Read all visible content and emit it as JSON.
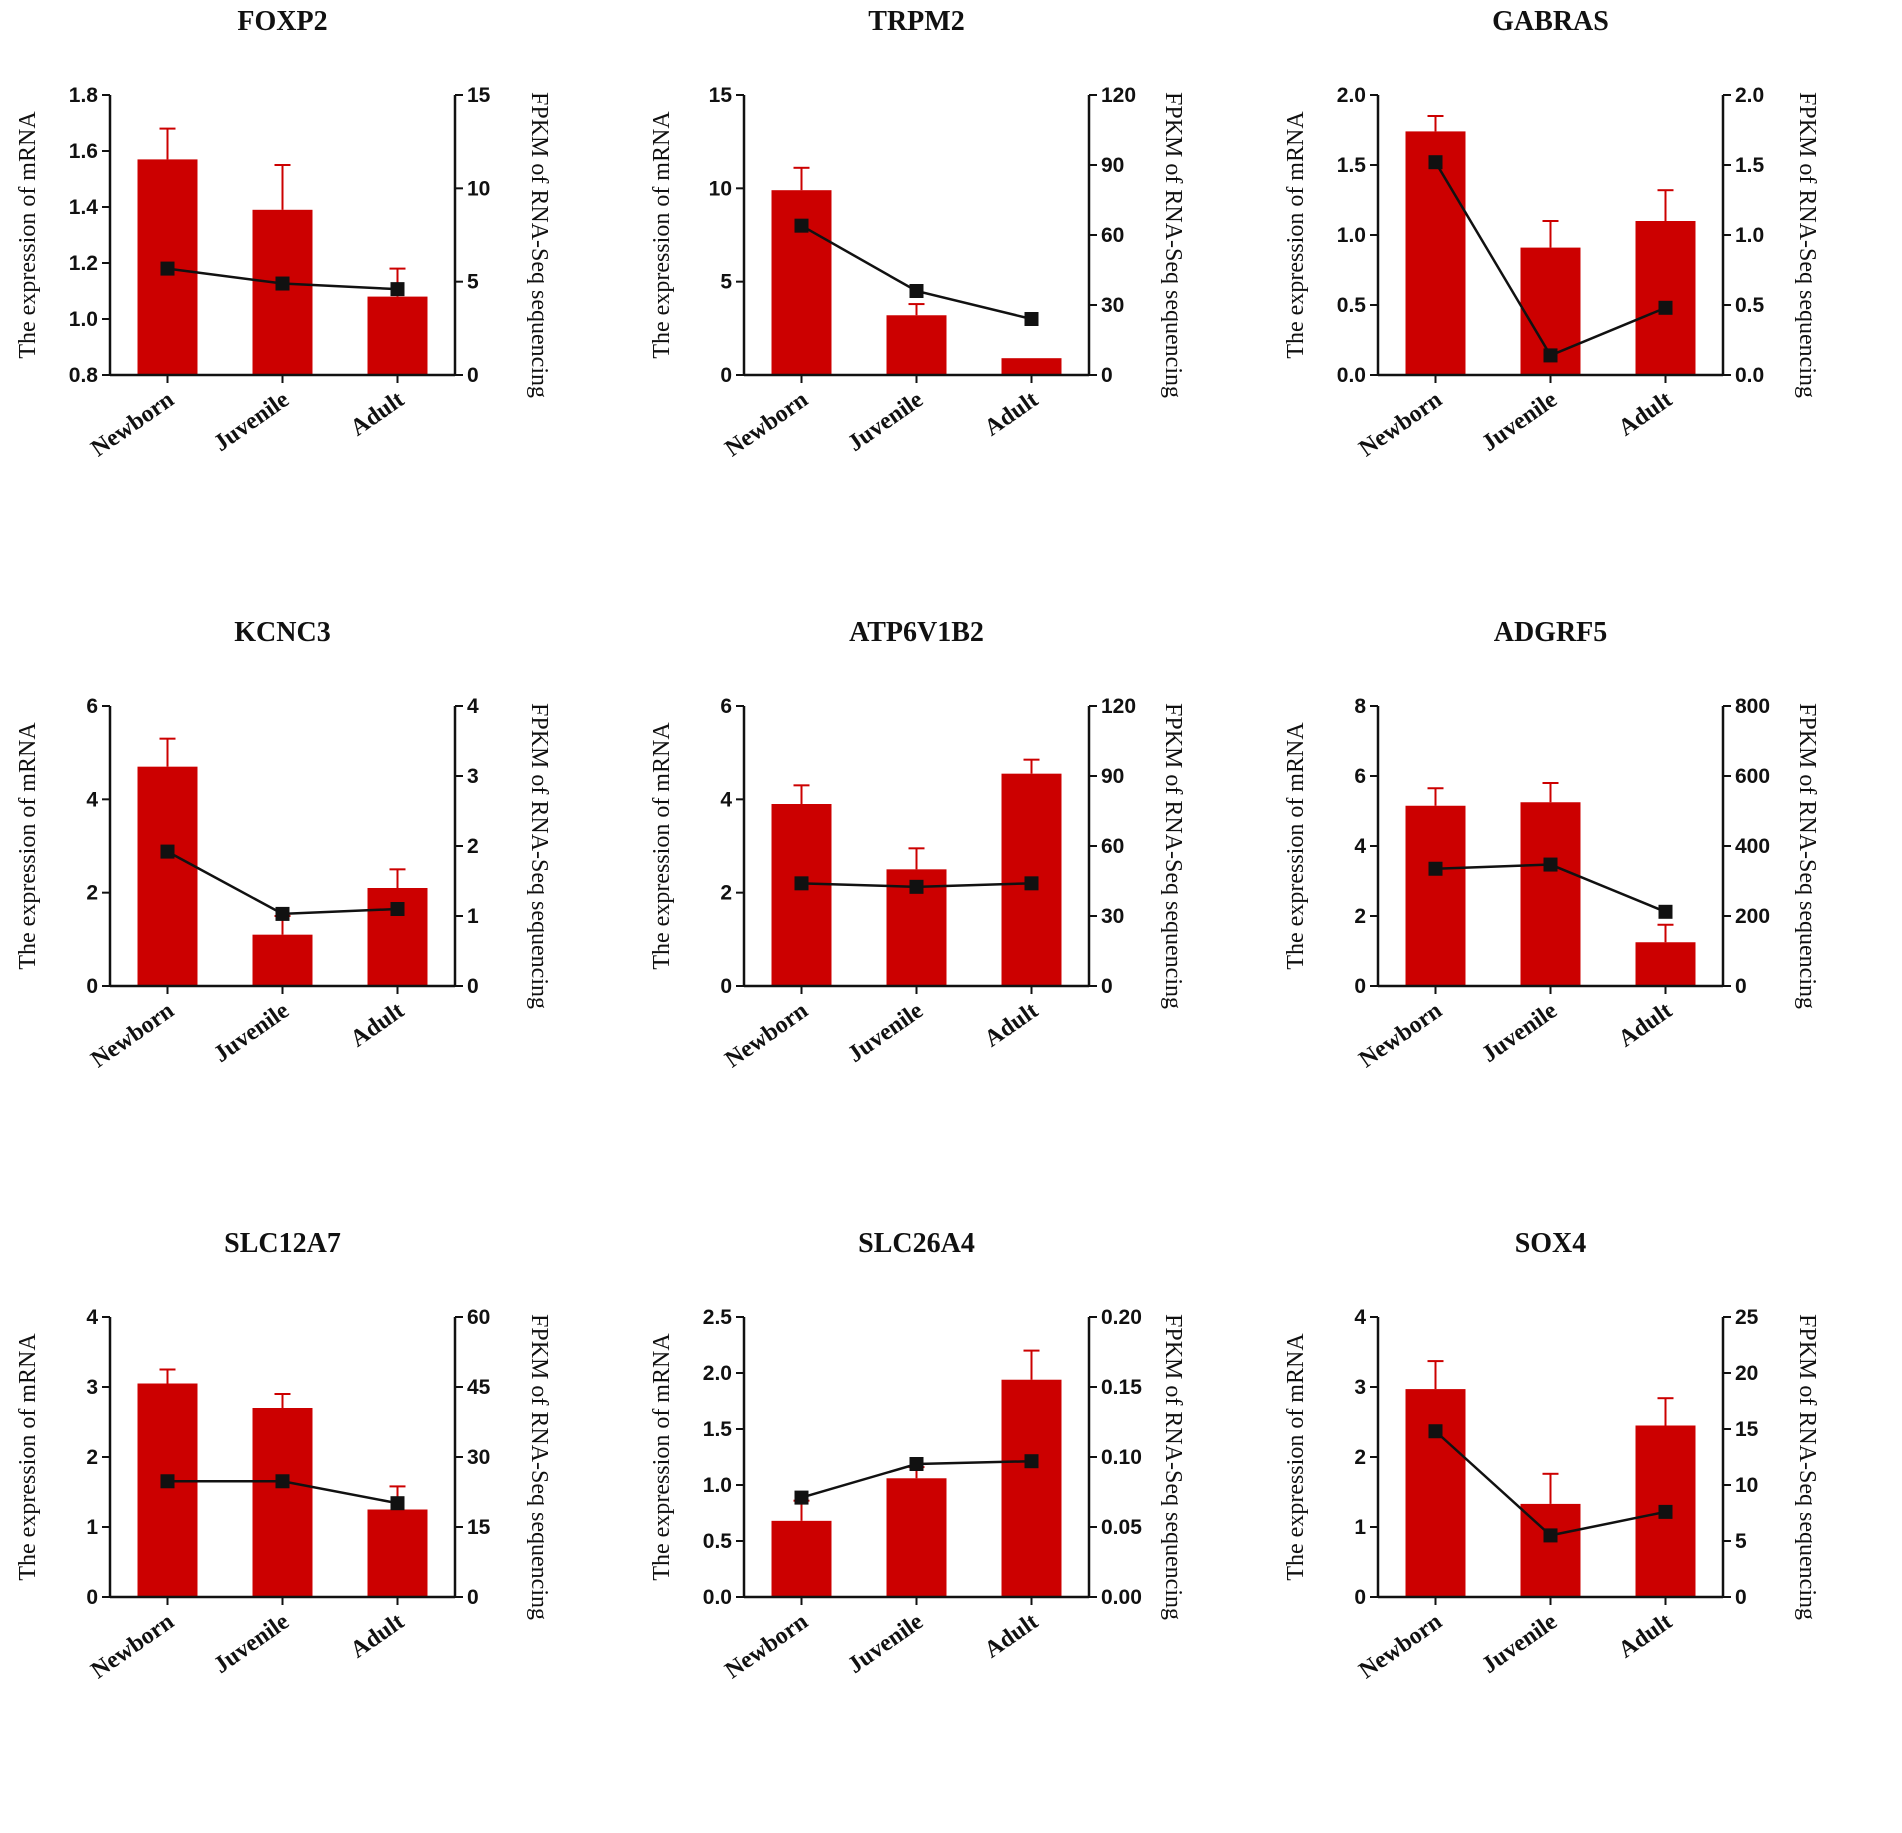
{
  "figure": {
    "left_axis_label": "The expression of mRNA",
    "right_axis_label": "FPKM of RNA-Seq sequencing",
    "bar_color": "#cc0000",
    "line_color": "#111111"
  },
  "chart_data": [
    {
      "type": "bar",
      "title": "FOXP2",
      "categories": [
        "Newborn",
        "Juvenile",
        "Adult"
      ],
      "xlabel": "",
      "ylabel": "The expression of mRNA",
      "ylim": [
        0.8,
        1.8
      ],
      "yticks": [
        "0.8",
        "1.0",
        "1.2",
        "1.4",
        "1.6",
        "1.8"
      ],
      "y2label": "FPKM of RNA-Seq sequencing",
      "y2lim": [
        0,
        15
      ],
      "y2ticks": [
        "0",
        "5",
        "10",
        "15"
      ],
      "series": [
        {
          "name": "The expression of mRNA",
          "type": "bar",
          "axis": "left",
          "values": [
            1.57,
            1.39,
            1.08
          ],
          "errors": [
            0.11,
            0.16,
            0.1
          ]
        },
        {
          "name": "FPKM of RNA-Seq sequencing",
          "type": "line",
          "axis": "right",
          "values": [
            5.7,
            4.9,
            4.6
          ]
        }
      ]
    },
    {
      "type": "bar",
      "title": "TRPM2",
      "categories": [
        "Newborn",
        "Juvenile",
        "Adult"
      ],
      "xlabel": "",
      "ylabel": "The expression of mRNA",
      "ylim": [
        0,
        15
      ],
      "yticks": [
        "0",
        "5",
        "10",
        "15"
      ],
      "y2label": "FPKM of RNA-Seq sequencing",
      "y2lim": [
        0,
        120
      ],
      "y2ticks": [
        "0",
        "30",
        "60",
        "90",
        "120"
      ],
      "series": [
        {
          "name": "The expression of mRNA",
          "type": "bar",
          "axis": "left",
          "values": [
            9.9,
            3.2,
            0.9
          ],
          "errors": [
            1.2,
            0.6,
            0.0
          ]
        },
        {
          "name": "FPKM of RNA-Seq sequencing",
          "type": "line",
          "axis": "right",
          "values": [
            64,
            36,
            24
          ]
        }
      ]
    },
    {
      "type": "bar",
      "title": "GABRAS",
      "categories": [
        "Newborn",
        "Juvenile",
        "Adult"
      ],
      "xlabel": "",
      "ylabel": "The expression of mRNA",
      "ylim": [
        0,
        2.0
      ],
      "yticks": [
        "0.0",
        "0.5",
        "1.0",
        "1.5",
        "2.0"
      ],
      "y2label": "FPKM of RNA-Seq sequencing",
      "y2lim": [
        0,
        2.0
      ],
      "y2ticks": [
        "0.0",
        "0.5",
        "1.0",
        "1.5",
        "2.0"
      ],
      "series": [
        {
          "name": "The expression of mRNA",
          "type": "bar",
          "axis": "left",
          "values": [
            1.74,
            0.91,
            1.1
          ],
          "errors": [
            0.11,
            0.19,
            0.22
          ]
        },
        {
          "name": "FPKM of RNA-Seq sequencing",
          "type": "line",
          "axis": "right",
          "values": [
            1.52,
            0.14,
            0.48
          ]
        }
      ]
    },
    {
      "type": "bar",
      "title": "KCNC3",
      "categories": [
        "Newborn",
        "Juvenile",
        "Adult"
      ],
      "xlabel": "",
      "ylabel": "The expression of mRNA",
      "ylim": [
        0,
        6
      ],
      "yticks": [
        "0",
        "2",
        "4",
        "6"
      ],
      "y2label": "FPKM of RNA-Seq sequencing",
      "y2lim": [
        0,
        4
      ],
      "y2ticks": [
        "0",
        "1",
        "2",
        "3",
        "4"
      ],
      "series": [
        {
          "name": "The expression of mRNA",
          "type": "bar",
          "axis": "left",
          "values": [
            4.7,
            1.1,
            2.1
          ],
          "errors": [
            0.6,
            0.4,
            0.4
          ]
        },
        {
          "name": "FPKM of RNA-Seq sequencing",
          "type": "line",
          "axis": "right",
          "values": [
            1.92,
            1.03,
            1.1
          ]
        }
      ]
    },
    {
      "type": "bar",
      "title": "ATP6V1B2",
      "categories": [
        "Newborn",
        "Juvenile",
        "Adult"
      ],
      "xlabel": "",
      "ylabel": "The expression of mRNA",
      "ylim": [
        0,
        6
      ],
      "yticks": [
        "0",
        "2",
        "4",
        "6"
      ],
      "y2label": "FPKM of RNA-Seq sequencing",
      "y2lim": [
        0,
        120
      ],
      "y2ticks": [
        "0",
        "30",
        "60",
        "90",
        "120"
      ],
      "series": [
        {
          "name": "The expression of mRNA",
          "type": "bar",
          "axis": "left",
          "values": [
            3.9,
            2.5,
            4.55
          ],
          "errors": [
            0.4,
            0.45,
            0.3
          ]
        },
        {
          "name": "FPKM of RNA-Seq sequencing",
          "type": "line",
          "axis": "right",
          "values": [
            44,
            42.5,
            44
          ]
        }
      ]
    },
    {
      "type": "bar",
      "title": "ADGRF5",
      "categories": [
        "Newborn",
        "Juvenile",
        "Adult"
      ],
      "xlabel": "",
      "ylabel": "The expression of mRNA",
      "ylim": [
        0,
        8
      ],
      "yticks": [
        "0",
        "2",
        "4",
        "6",
        "8"
      ],
      "y2label": "FPKM of RNA-Seq sequencing",
      "y2lim": [
        0,
        800
      ],
      "y2ticks": [
        "0",
        "200",
        "400",
        "600",
        "800"
      ],
      "series": [
        {
          "name": "The expression of mRNA",
          "type": "bar",
          "axis": "left",
          "values": [
            5.15,
            5.25,
            1.25
          ],
          "errors": [
            0.5,
            0.55,
            0.5
          ]
        },
        {
          "name": "FPKM of RNA-Seq sequencing",
          "type": "line",
          "axis": "right",
          "values": [
            335,
            347,
            212
          ]
        }
      ]
    },
    {
      "type": "bar",
      "title": "SLC12A7",
      "categories": [
        "Newborn",
        "Juvenile",
        "Adult"
      ],
      "xlabel": "",
      "ylabel": "The expression of mRNA",
      "ylim": [
        0,
        4
      ],
      "yticks": [
        "0",
        "1",
        "2",
        "3",
        "4"
      ],
      "y2label": "FPKM of RNA-Seq sequencing",
      "y2lim": [
        0,
        60
      ],
      "y2ticks": [
        "0",
        "15",
        "30",
        "45",
        "60"
      ],
      "series": [
        {
          "name": "The expression of mRNA",
          "type": "bar",
          "axis": "left",
          "values": [
            3.05,
            2.7,
            1.25
          ],
          "errors": [
            0.2,
            0.2,
            0.33
          ]
        },
        {
          "name": "FPKM of RNA-Seq sequencing",
          "type": "line",
          "axis": "right",
          "values": [
            24.8,
            24.8,
            20.1
          ]
        }
      ]
    },
    {
      "type": "bar",
      "title": "SLC26A4",
      "categories": [
        "Newborn",
        "Juvenile",
        "Adult"
      ],
      "xlabel": "",
      "ylabel": "The expression of mRNA",
      "ylim": [
        0,
        2.5
      ],
      "yticks": [
        "0.0",
        "0.5",
        "1.0",
        "1.5",
        "2.0",
        "2.5"
      ],
      "y2label": "FPKM of RNA-Seq sequencing",
      "y2lim": [
        0,
        0.2
      ],
      "y2ticks": [
        "0.00",
        "0.05",
        "0.10",
        "0.15",
        "0.20"
      ],
      "series": [
        {
          "name": "The expression of mRNA",
          "type": "bar",
          "axis": "left",
          "values": [
            0.68,
            1.06,
            1.94
          ],
          "errors": [
            0.18,
            0.1,
            0.26
          ]
        },
        {
          "name": "FPKM of RNA-Seq sequencing",
          "type": "line",
          "axis": "right",
          "values": [
            0.071,
            0.095,
            0.097
          ]
        }
      ]
    },
    {
      "type": "bar",
      "title": "SOX4",
      "categories": [
        "Newborn",
        "Juvenile",
        "Adult"
      ],
      "xlabel": "",
      "ylabel": "The expression of mRNA",
      "ylim": [
        0,
        4
      ],
      "yticks": [
        "0",
        "1",
        "2",
        "3",
        "4"
      ],
      "y2label": "FPKM of RNA-Seq sequencing",
      "y2lim": [
        0,
        25
      ],
      "y2ticks": [
        "0",
        "5",
        "10",
        "15",
        "20",
        "25"
      ],
      "series": [
        {
          "name": "The expression of mRNA",
          "type": "bar",
          "axis": "left",
          "values": [
            2.97,
            1.33,
            2.45
          ],
          "errors": [
            0.4,
            0.43,
            0.39
          ]
        },
        {
          "name": "FPKM of RNA-Seq sequencing",
          "type": "line",
          "axis": "right",
          "values": [
            14.8,
            5.5,
            7.6
          ]
        }
      ]
    }
  ]
}
